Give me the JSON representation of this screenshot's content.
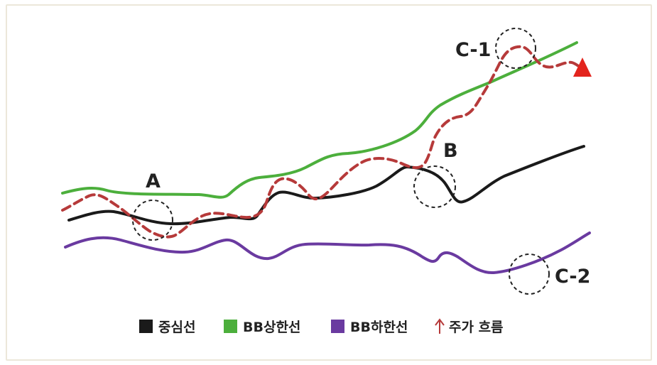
{
  "annotations": {
    "a": "A",
    "b": "B",
    "c1": "C-1",
    "c2": "C-2"
  },
  "legend": {
    "middle": {
      "label": "중심선",
      "color": "#1a1a1a"
    },
    "upper": {
      "label": "BB상한선",
      "color": "#4caf3c"
    },
    "lower": {
      "label": "BB하한선",
      "color": "#6a3aa0"
    },
    "price": {
      "label": "주가 흐름",
      "color": "#b63a3a",
      "icon": "up-arrow-icon"
    }
  },
  "marker": {
    "icon": "red-triangle-icon",
    "color": "#e3241d"
  }
}
